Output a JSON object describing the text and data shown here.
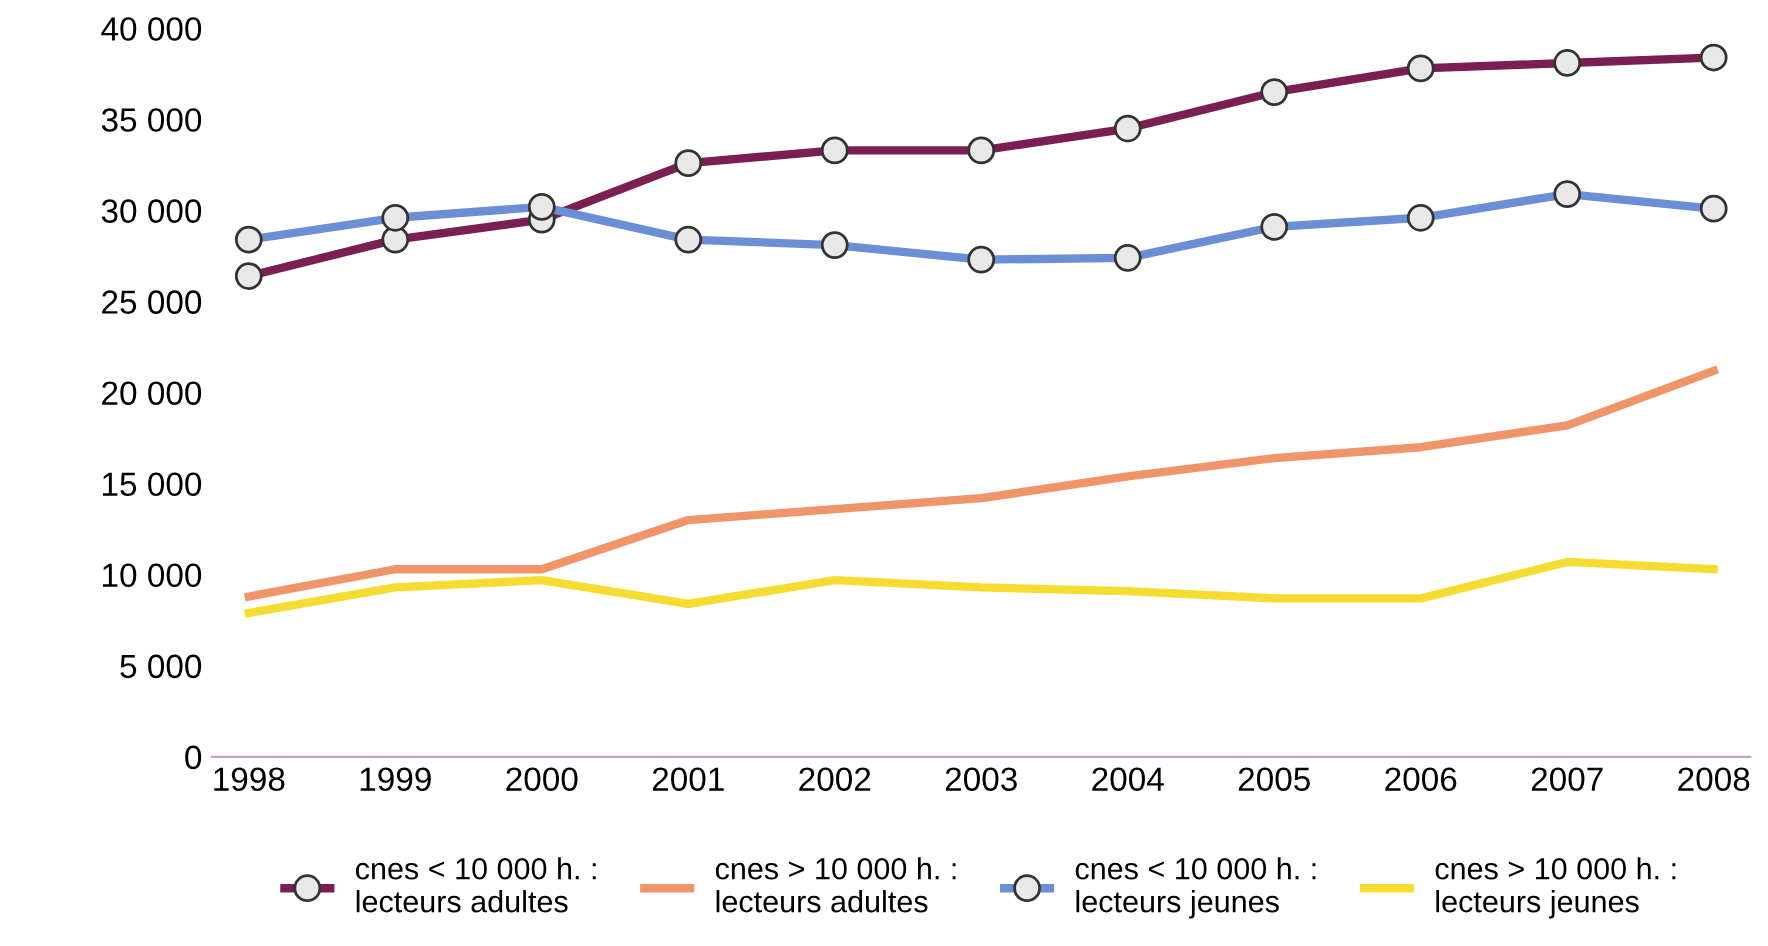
{
  "chart_data": {
    "type": "line",
    "categories": [
      "1998",
      "1999",
      "2000",
      "2001",
      "2002",
      "2003",
      "2004",
      "2005",
      "2006",
      "2007",
      "2008"
    ],
    "series": [
      {
        "name": "cnes < 10 000 h. : lecteurs adultes",
        "color": "#7b1f52",
        "marker": "circle",
        "values": [
          26400,
          28400,
          29500,
          32600,
          33300,
          33300,
          34500,
          36500,
          37800,
          38100,
          38400
        ]
      },
      {
        "name": "cnes > 10 000 h. : lecteurs adultes",
        "color": "#f0956a",
        "marker": "none",
        "values": [
          8800,
          10300,
          10300,
          13000,
          13600,
          14200,
          15400,
          16400,
          17000,
          18200,
          21200
        ]
      },
      {
        "name": "cnes < 10 000 h. : lecteurs jeunes",
        "color": "#6a8fd6",
        "marker": "circle",
        "values": [
          28400,
          29600,
          30200,
          28400,
          28100,
          27300,
          27400,
          29100,
          29600,
          30900,
          30100
        ]
      },
      {
        "name": "cnes > 10 000 h. : lecteurs jeunes",
        "color": "#f5dc30",
        "marker": "none",
        "values": [
          7900,
          9300,
          9700,
          8400,
          9700,
          9300,
          9100,
          8700,
          8700,
          10700,
          10300
        ]
      }
    ],
    "ylim": [
      0,
      40000
    ],
    "yticks": [
      {
        "value": 0,
        "label": "0"
      },
      {
        "value": 5000,
        "label": "5 000"
      },
      {
        "value": 10000,
        "label": "10 000"
      },
      {
        "value": 15000,
        "label": "15 000"
      },
      {
        "value": 20000,
        "label": "20 000"
      },
      {
        "value": 25000,
        "label": "25 000"
      },
      {
        "value": 30000,
        "label": "30 000"
      },
      {
        "value": 35000,
        "label": "35 000"
      },
      {
        "value": 40000,
        "label": "40 000"
      }
    ],
    "grid": false,
    "legend": "bottom"
  }
}
